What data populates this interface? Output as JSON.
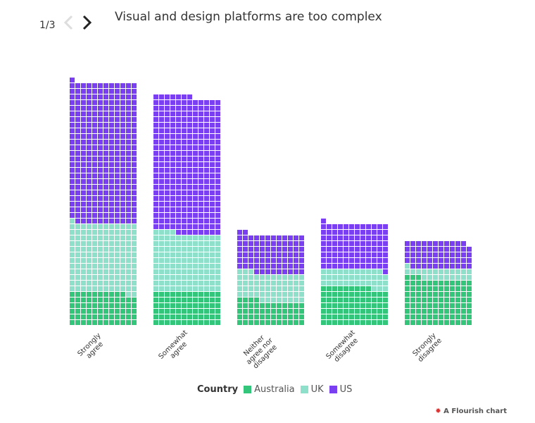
{
  "navigation": {
    "page": "1/3"
  },
  "chart_data": {
    "type": "waffle",
    "title": "Visual and design platforms are too complex",
    "categories": [
      "Strongly agree",
      "Somewhat agree",
      "Neither agree nor disagree",
      "Somewhat disagree",
      "Strongly disagree"
    ],
    "legend_title": "Country",
    "series": [
      {
        "name": "Australia",
        "color": "#33c57a",
        "values": [
          70,
          72,
          52,
          81,
          99
        ]
      },
      {
        "name": "UK",
        "color": "#8fe0cb",
        "values": [
          147,
          124,
          59,
          38,
          22
        ]
      },
      {
        "name": "US",
        "color": "#7b3ff2",
        "values": [
          300,
          291,
          83,
          98,
          58
        ]
      }
    ]
  },
  "footer": "A Flourish chart"
}
